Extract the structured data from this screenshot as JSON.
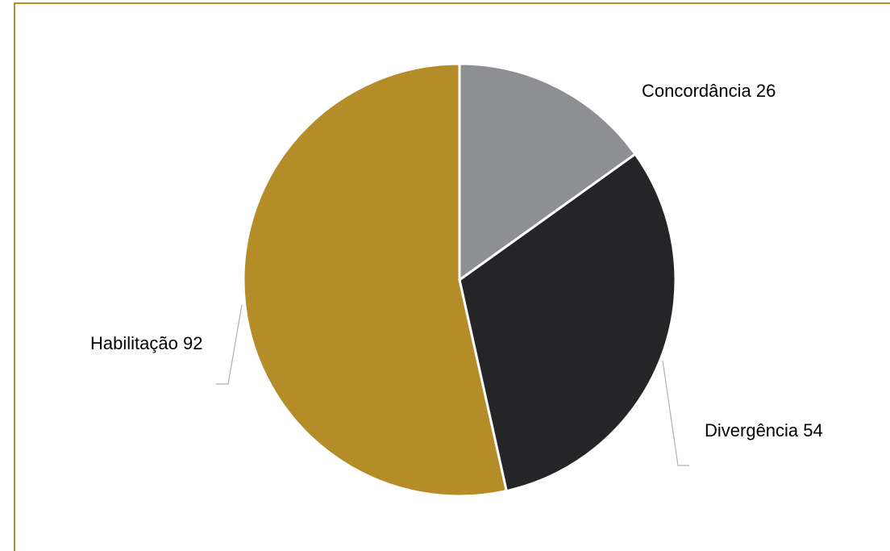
{
  "chart_data": {
    "type": "pie",
    "slices": [
      {
        "label": "Concordância",
        "value": 26,
        "color": "#8e8f93"
      },
      {
        "label": "Divergência",
        "value": 54,
        "color": "#252527"
      },
      {
        "label": "Habilitação",
        "value": 92,
        "color": "#b48c28"
      }
    ],
    "data_labels": [
      "Concordância 26",
      "Divergência 54",
      "Habilitação 92"
    ],
    "start_angle_deg": 0,
    "direction": "clockwise",
    "border_color": "#b48c28",
    "slice_separator_color": "#ffffff",
    "leader_line_color": "#b0b0b0"
  }
}
